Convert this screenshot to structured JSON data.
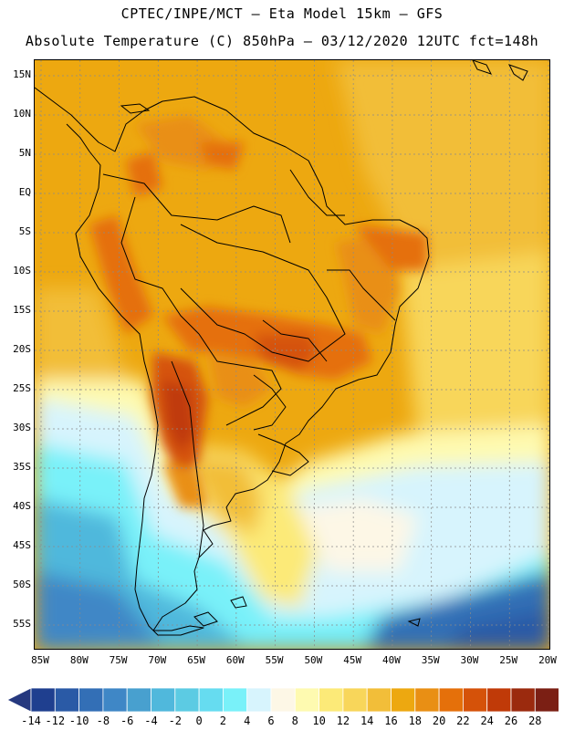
{
  "header": {
    "title_line1": "CPTEC/INPE/MCT –  Eta Model 15km – GFS",
    "title_line2": "Absolute Temperature (C) 850hPa – 03/12/2020 12UTC fct=148h"
  },
  "map": {
    "lat_labels": [
      "15N",
      "10N",
      "5N",
      "EQ",
      "5S",
      "10S",
      "15S",
      "20S",
      "25S",
      "30S",
      "35S",
      "40S",
      "45S",
      "50S",
      "55S"
    ],
    "lon_labels": [
      "85W",
      "80W",
      "75W",
      "70W",
      "65W",
      "60W",
      "55W",
      "50W",
      "45W",
      "40W",
      "35W",
      "30W",
      "25W",
      "20W"
    ]
  },
  "colorbar": {
    "labels": [
      "-14",
      "-12",
      "-10",
      "-8",
      "-6",
      "-4",
      "-2",
      "0",
      "2",
      "4",
      "6",
      "8",
      "10",
      "12",
      "14",
      "16",
      "18",
      "20",
      "22",
      "24",
      "26",
      "28"
    ],
    "colors": [
      "#1f3f8f",
      "#2a5aa6",
      "#336fb6",
      "#3f87c6",
      "#48a0cf",
      "#50b8dc",
      "#5ccbe3",
      "#66dcf0",
      "#79f1f9",
      "#d7f4fd",
      "#fdf7e6",
      "#fefab0",
      "#fcea78",
      "#f8d65a",
      "#f2be39",
      "#eda810",
      "#e98f14",
      "#e5700a",
      "#d55209",
      "#c03a08",
      "#9b2a0e",
      "#7b1f14"
    ],
    "low_end_color": "#26397f",
    "high_end_color": "#700a2e"
  }
}
